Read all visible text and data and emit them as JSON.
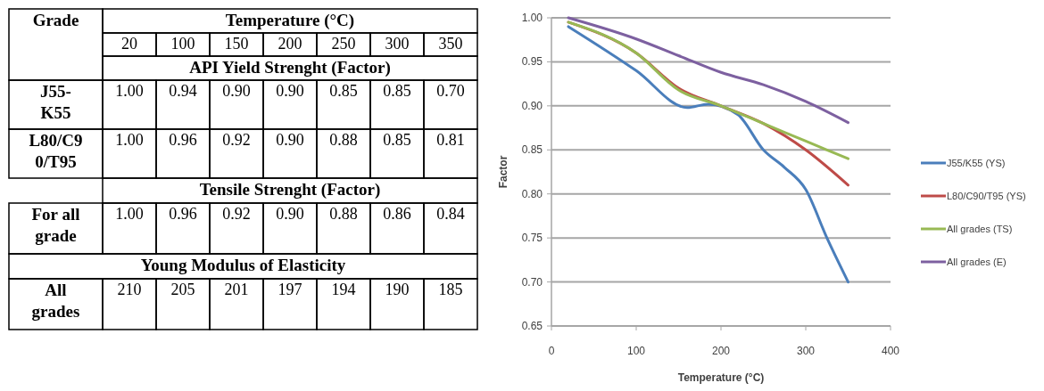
{
  "chart_data": [
    {
      "type": "heatmap",
      "ylabel": "Grade",
      "xlabel": "Temperature (°C)",
      "annotations": [
        "API Yield Strenght (Factor)",
        "Tensile Strenght (Factor)",
        "Young Modulus of Elasticity"
      ],
      "categories": [
        "20",
        "100",
        "150",
        "200",
        "250",
        "300",
        "350"
      ],
      "y_categories": [
        "J55-\nK55",
        "L80/C9\n0/T95",
        "For all\ngrade",
        "All\ngrades"
      ],
      "cells": [
        [
          1.0,
          0.94,
          0.9,
          0.9,
          0.85,
          0.85,
          0.7
        ],
        [
          1.0,
          0.96,
          0.92,
          0.9,
          0.88,
          0.85,
          0.81
        ],
        [
          1.0,
          0.96,
          0.92,
          0.9,
          0.88,
          0.86,
          0.84
        ],
        [
          210,
          205,
          201,
          197,
          194,
          190,
          185
        ]
      ],
      "cell_labels": [
        [
          "1.00",
          "0.94",
          "0.90",
          "0.90",
          "0.85",
          "0.85",
          "0.70"
        ],
        [
          "1.00",
          "0.96",
          "0.92",
          "0.90",
          "0.88",
          "0.85",
          "0.81"
        ],
        [
          "1.00",
          "0.96",
          "0.92",
          "0.90",
          "0.88",
          "0.86",
          "0.84"
        ],
        [
          "210",
          "205",
          "201",
          "197",
          "194",
          "190",
          "185"
        ]
      ]
    },
    {
      "type": "line",
      "xlabel": "Temperature (°C)",
      "ylabel": "Factor",
      "xlim": [
        0,
        400
      ],
      "xticks": [
        0,
        100,
        200,
        300,
        400
      ],
      "ylim": [
        0.65,
        1.0
      ],
      "yticks": [
        {
          "value": 0.65,
          "label": "0.65"
        },
        {
          "value": 0.7,
          "label": "0.70"
        },
        {
          "value": 0.75,
          "label": "0.75"
        },
        {
          "value": 0.8,
          "label": "0.80"
        },
        {
          "value": 0.85,
          "label": "0.85"
        },
        {
          "value": 0.9,
          "label": "0.90"
        },
        {
          "value": 0.95,
          "label": "0.95"
        },
        {
          "value": 1.0,
          "label": "1.00"
        }
      ],
      "grid": "y",
      "legend": "right",
      "marker": "none",
      "line_style": "solid",
      "series": [
        {
          "name": "J55/K55 (YS)",
          "color": "#4a7ebb",
          "x": [
            20,
            100,
            160,
            185,
            220,
            250,
            275,
            300,
            325,
            350
          ],
          "values": [
            0.99,
            0.94,
            0.898,
            0.902,
            0.89,
            0.85,
            0.83,
            0.805,
            0.75,
            0.7
          ]
        },
        {
          "name": "L80/C90/T95 (YS)",
          "color": "#be4b48",
          "x": [
            20,
            100,
            150,
            200,
            250,
            300,
            350
          ],
          "values": [
            0.995,
            0.96,
            0.92,
            0.9,
            0.88,
            0.85,
            0.81
          ]
        },
        {
          "name": "All grades (TS)",
          "color": "#98b954",
          "x": [
            20,
            100,
            150,
            200,
            250,
            300,
            350
          ],
          "values": [
            0.995,
            0.96,
            0.918,
            0.9,
            0.88,
            0.86,
            0.84
          ]
        },
        {
          "name": "All grades (E)",
          "color": "#7d60a0",
          "x": [
            20,
            100,
            150,
            200,
            250,
            300,
            350
          ],
          "values": [
            1.0,
            0.976,
            0.957,
            0.938,
            0.924,
            0.905,
            0.881
          ]
        }
      ]
    }
  ]
}
